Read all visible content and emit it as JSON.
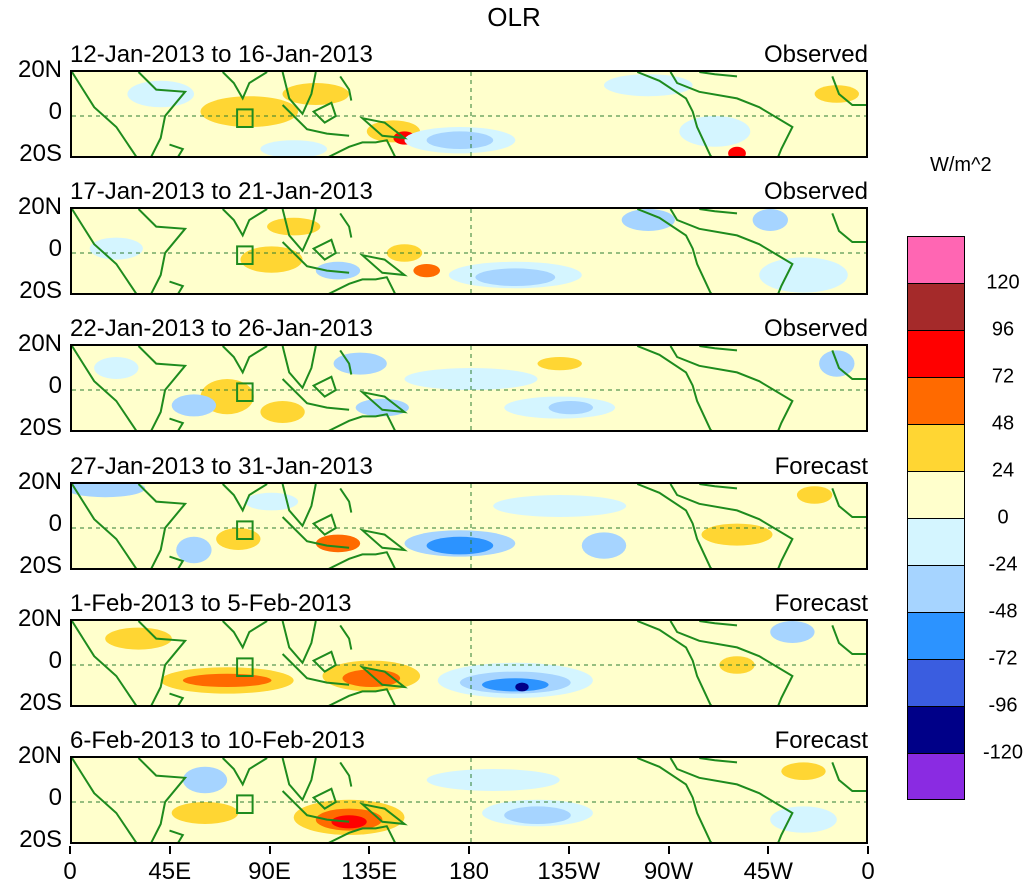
{
  "chart_data": {
    "type": "heatmap",
    "title": "OLR",
    "x_tick_labels": [
      "0",
      "45E",
      "90E",
      "135E",
      "180",
      "135W",
      "90W",
      "45W",
      "0"
    ],
    "x_ticks_deg": [
      0,
      45,
      90,
      135,
      180,
      225,
      270,
      315,
      360
    ],
    "y_tick_labels": [
      "20N",
      "0",
      "20S"
    ],
    "y_range": [
      -20,
      20
    ],
    "panels": [
      {
        "period": "12-Jan-2013 to 16-Jan-2013",
        "type": "Observed",
        "anomalies": [
          {
            "lon": 80,
            "lat": 2,
            "rx": 22,
            "ry": 7,
            "v": 24
          },
          {
            "lon": 110,
            "lat": 10,
            "rx": 15,
            "ry": 5,
            "v": 24
          },
          {
            "lon": 145,
            "lat": -7,
            "rx": 12,
            "ry": 5,
            "v": 24
          },
          {
            "lon": 150,
            "lat": -10,
            "rx": 5,
            "ry": 3,
            "v": 72
          },
          {
            "lon": 175,
            "lat": -11,
            "rx": 25,
            "ry": 6,
            "v": -24
          },
          {
            "lon": 175,
            "lat": -11,
            "rx": 15,
            "ry": 4,
            "v": -48
          },
          {
            "lon": 40,
            "lat": 10,
            "rx": 15,
            "ry": 6,
            "v": -24
          },
          {
            "lon": 260,
            "lat": 14,
            "rx": 20,
            "ry": 5,
            "v": -24
          },
          {
            "lon": 290,
            "lat": -7,
            "rx": 16,
            "ry": 7,
            "v": -24
          },
          {
            "lon": 300,
            "lat": -17,
            "rx": 4,
            "ry": 3,
            "v": 72
          },
          {
            "lon": 345,
            "lat": 10,
            "rx": 10,
            "ry": 4,
            "v": 24
          },
          {
            "lon": 100,
            "lat": -15,
            "rx": 15,
            "ry": 4,
            "v": -24
          }
        ]
      },
      {
        "period": "17-Jan-2013 to 21-Jan-2013",
        "type": "Observed",
        "anomalies": [
          {
            "lon": 90,
            "lat": -3,
            "rx": 14,
            "ry": 6,
            "v": 24
          },
          {
            "lon": 150,
            "lat": 0,
            "rx": 8,
            "ry": 4,
            "v": 24
          },
          {
            "lon": 160,
            "lat": -8,
            "rx": 6,
            "ry": 3,
            "v": 48
          },
          {
            "lon": 200,
            "lat": -10,
            "rx": 30,
            "ry": 6,
            "v": -24
          },
          {
            "lon": 200,
            "lat": -11,
            "rx": 18,
            "ry": 4,
            "v": -48
          },
          {
            "lon": 260,
            "lat": 15,
            "rx": 12,
            "ry": 5,
            "v": -48
          },
          {
            "lon": 315,
            "lat": 15,
            "rx": 8,
            "ry": 5,
            "v": -48
          },
          {
            "lon": 330,
            "lat": -10,
            "rx": 20,
            "ry": 8,
            "v": -24
          },
          {
            "lon": 20,
            "lat": 2,
            "rx": 12,
            "ry": 5,
            "v": -24
          },
          {
            "lon": 120,
            "lat": -8,
            "rx": 10,
            "ry": 4,
            "v": -48
          },
          {
            "lon": 100,
            "lat": 12,
            "rx": 12,
            "ry": 4,
            "v": 24
          }
        ]
      },
      {
        "period": "22-Jan-2013 to 26-Jan-2013",
        "type": "Observed",
        "anomalies": [
          {
            "lon": 70,
            "lat": -3,
            "rx": 12,
            "ry": 8,
            "v": 24
          },
          {
            "lon": 55,
            "lat": -7,
            "rx": 10,
            "ry": 5,
            "v": -48
          },
          {
            "lon": 130,
            "lat": 12,
            "rx": 12,
            "ry": 5,
            "v": -48
          },
          {
            "lon": 140,
            "lat": -8,
            "rx": 12,
            "ry": 4,
            "v": -48
          },
          {
            "lon": 220,
            "lat": -8,
            "rx": 25,
            "ry": 5,
            "v": -24
          },
          {
            "lon": 225,
            "lat": -8,
            "rx": 10,
            "ry": 3,
            "v": -48
          },
          {
            "lon": 180,
            "lat": 5,
            "rx": 30,
            "ry": 5,
            "v": -24
          },
          {
            "lon": 220,
            "lat": 12,
            "rx": 10,
            "ry": 3,
            "v": 24
          },
          {
            "lon": 95,
            "lat": -10,
            "rx": 10,
            "ry": 5,
            "v": 24
          },
          {
            "lon": 345,
            "lat": 12,
            "rx": 8,
            "ry": 6,
            "v": -48
          },
          {
            "lon": 20,
            "lat": 10,
            "rx": 10,
            "ry": 5,
            "v": -24
          }
        ]
      },
      {
        "period": "27-Jan-2013 to 31-Jan-2013",
        "type": "Forecast",
        "anomalies": [
          {
            "lon": 175,
            "lat": -7,
            "rx": 25,
            "ry": 6,
            "v": -48
          },
          {
            "lon": 175,
            "lat": -8,
            "rx": 15,
            "ry": 4,
            "v": -72
          },
          {
            "lon": 55,
            "lat": -10,
            "rx": 8,
            "ry": 6,
            "v": -48
          },
          {
            "lon": 75,
            "lat": -5,
            "rx": 10,
            "ry": 5,
            "v": 24
          },
          {
            "lon": 120,
            "lat": -7,
            "rx": 10,
            "ry": 4,
            "v": 48
          },
          {
            "lon": 240,
            "lat": -8,
            "rx": 10,
            "ry": 6,
            "v": -48
          },
          {
            "lon": 300,
            "lat": -3,
            "rx": 16,
            "ry": 5,
            "v": 24
          },
          {
            "lon": 15,
            "lat": 18,
            "rx": 18,
            "ry": 4,
            "v": -48
          },
          {
            "lon": 220,
            "lat": 10,
            "rx": 30,
            "ry": 5,
            "v": -24
          },
          {
            "lon": 335,
            "lat": 15,
            "rx": 8,
            "ry": 4,
            "v": 24
          },
          {
            "lon": 90,
            "lat": 12,
            "rx": 12,
            "ry": 4,
            "v": -24
          }
        ]
      },
      {
        "period": "1-Feb-2013 to 5-Feb-2013",
        "type": "Forecast",
        "anomalies": [
          {
            "lon": 70,
            "lat": -7,
            "rx": 30,
            "ry": 6,
            "v": 24
          },
          {
            "lon": 70,
            "lat": -7,
            "rx": 20,
            "ry": 3,
            "v": 48
          },
          {
            "lon": 135,
            "lat": -5,
            "rx": 22,
            "ry": 7,
            "v": 24
          },
          {
            "lon": 135,
            "lat": -6,
            "rx": 13,
            "ry": 4,
            "v": 48
          },
          {
            "lon": 200,
            "lat": -7,
            "rx": 35,
            "ry": 8,
            "v": -24
          },
          {
            "lon": 200,
            "lat": -8,
            "rx": 25,
            "ry": 5,
            "v": -48
          },
          {
            "lon": 200,
            "lat": -9,
            "rx": 15,
            "ry": 3,
            "v": -72
          },
          {
            "lon": 203,
            "lat": -10,
            "rx": 3,
            "ry": 2,
            "v": -120
          },
          {
            "lon": 325,
            "lat": 15,
            "rx": 10,
            "ry": 5,
            "v": -48
          },
          {
            "lon": 300,
            "lat": 0,
            "rx": 8,
            "ry": 4,
            "v": 24
          },
          {
            "lon": 30,
            "lat": 12,
            "rx": 15,
            "ry": 5,
            "v": 24
          }
        ]
      },
      {
        "period": "6-Feb-2013 to 10-Feb-2013",
        "type": "Forecast",
        "anomalies": [
          {
            "lon": 125,
            "lat": -7,
            "rx": 25,
            "ry": 8,
            "v": 24
          },
          {
            "lon": 125,
            "lat": -8,
            "rx": 15,
            "ry": 5,
            "v": 48
          },
          {
            "lon": 125,
            "lat": -9,
            "rx": 8,
            "ry": 3,
            "v": 72
          },
          {
            "lon": 210,
            "lat": -5,
            "rx": 25,
            "ry": 6,
            "v": -24
          },
          {
            "lon": 210,
            "lat": -6,
            "rx": 15,
            "ry": 4,
            "v": -48
          },
          {
            "lon": 60,
            "lat": 10,
            "rx": 10,
            "ry": 6,
            "v": -48
          },
          {
            "lon": 60,
            "lat": -5,
            "rx": 15,
            "ry": 5,
            "v": 24
          },
          {
            "lon": 190,
            "lat": 10,
            "rx": 30,
            "ry": 5,
            "v": -24
          },
          {
            "lon": 330,
            "lat": -8,
            "rx": 15,
            "ry": 6,
            "v": -24
          },
          {
            "lon": 330,
            "lat": 14,
            "rx": 10,
            "ry": 4,
            "v": 24
          }
        ]
      }
    ],
    "colorbar": {
      "unit": "W/m^2",
      "labels": [
        "120",
        "96",
        "72",
        "48",
        "24",
        "0",
        "-24",
        "-48",
        "-72",
        "-96",
        "-120"
      ],
      "colors": [
        "#ff66b3",
        "#a52a2a",
        "#ff0000",
        "#ff6a00",
        "#ffd633",
        "#ffffcc",
        "#d4f5ff",
        "#a6d4ff",
        "#2c93ff",
        "#3a5de0",
        "#000088",
        "#8a2be2"
      ],
      "levels": [
        -120,
        -96,
        -72,
        -48,
        -24,
        0,
        24,
        48,
        72,
        96,
        120
      ]
    }
  }
}
